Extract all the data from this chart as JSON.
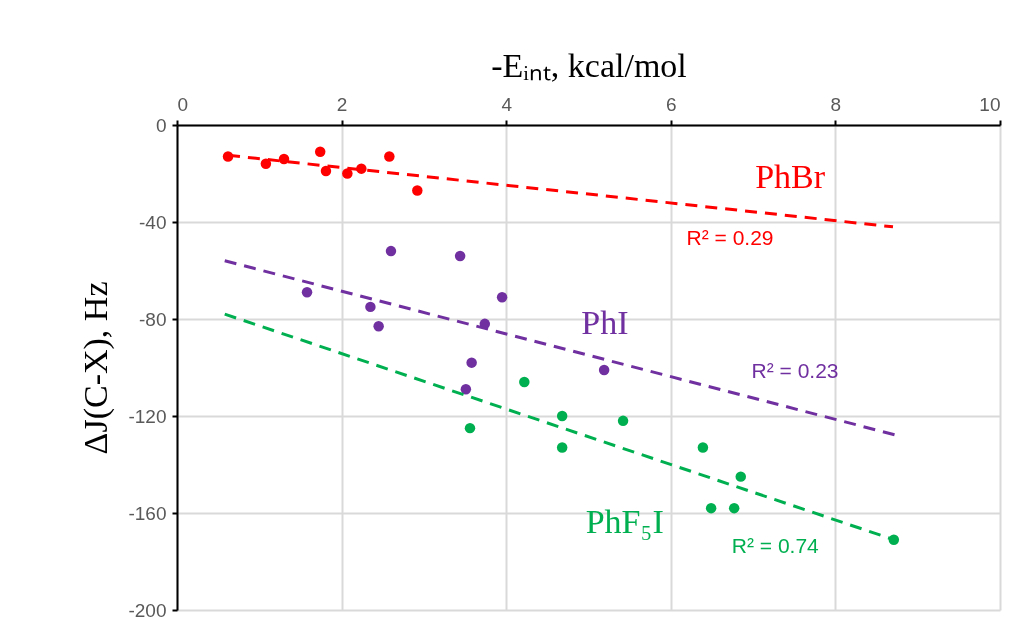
{
  "chart_data": {
    "type": "scatter",
    "xlabel": "-Eᵢₙₜ, kcal/mol",
    "ylabel": "ΔJ(C-X), Hz",
    "xlim": [
      0,
      10
    ],
    "xticks": [
      0,
      2,
      4,
      6,
      8,
      10
    ],
    "ylim": [
      -200,
      0
    ],
    "yticks": [
      -200,
      -160,
      -120,
      -80,
      -40,
      0
    ],
    "grid": true,
    "series": [
      {
        "name": "PhBr",
        "marker": "circle",
        "color": "#ff0000",
        "x": [
          0.62,
          1.08,
          1.3,
          1.74,
          1.81,
          2.07,
          2.24,
          2.58,
          2.92
        ],
        "values": [
          -13,
          -16,
          -14,
          -11,
          -19,
          -20,
          -18,
          -13,
          -27
        ]
      },
      {
        "name": "PhI",
        "marker": "circle",
        "color": "#7030a0",
        "x": [
          1.58,
          2.35,
          2.45,
          2.6,
          3.44,
          3.95,
          3.74,
          3.58,
          3.51,
          5.19
        ],
        "values": [
          -69,
          -75,
          -83,
          -52,
          -54,
          -71,
          -82,
          -98,
          -109,
          -101
        ]
      },
      {
        "name": "PhF₅I",
        "marker": "circle",
        "color": "#00b050",
        "x": [
          4.22,
          4.68,
          3.56,
          4.68,
          5.42,
          6.39,
          6.85,
          6.49,
          6.77,
          8.71
        ],
        "values": [
          -106,
          -120,
          -125,
          -133,
          -122,
          -133,
          -145,
          -158,
          -158,
          -171
        ]
      },
      {
        "type": "line",
        "line_style": "dashed",
        "color": "#ff0000",
        "x": [
          0.62,
          8.7
        ],
        "values": [
          -12.5,
          -42
        ]
      },
      {
        "type": "line",
        "line_style": "dashed",
        "color": "#7030a0",
        "x": [
          0.58,
          8.75
        ],
        "values": [
          -56,
          -128
        ]
      },
      {
        "type": "line",
        "line_style": "dashed",
        "color": "#00b050",
        "x": [
          0.58,
          8.71
        ],
        "values": [
          -78,
          -171
        ]
      }
    ],
    "annotations": [
      "R² = 0.29",
      "R² = 0.23",
      "R² = 0.74"
    ]
  }
}
